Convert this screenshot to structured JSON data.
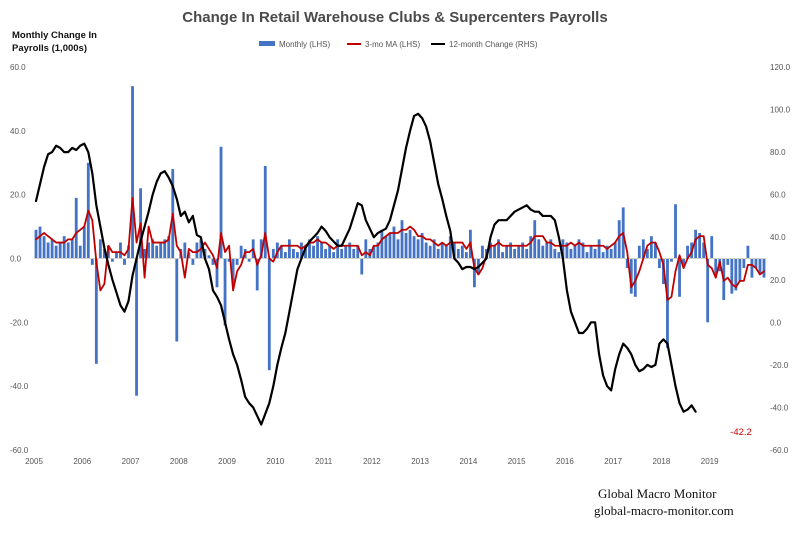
{
  "chart_data": {
    "type": "bar",
    "title": "Change In Retail Warehouse Clubs & Supercenters Payrolls",
    "ylabel": "Monthly Change In Payrolls (1,000s)",
    "ylabel_lines": [
      "Monthly Change In",
      "Payrolls (1,000s)"
    ],
    "x_ticks": [
      "2005",
      "2006",
      "2007",
      "2008",
      "2009",
      "2010",
      "2011",
      "2012",
      "2013",
      "2014",
      "2015",
      "2016",
      "2017",
      "2018",
      "2019"
    ],
    "x_start_year": 2005,
    "ylim_left": [
      -60,
      60
    ],
    "left_ticks": [
      "60.0",
      "40.0",
      "20.0",
      "0.0",
      "-20.0",
      "-40.0",
      "-60.0"
    ],
    "ylim_right": [
      -60,
      120
    ],
    "right_ticks": [
      "120.0",
      "100.0",
      "80.0",
      "60.0",
      "40.0",
      "20.0",
      "0.0",
      "-20.0",
      "-40.0",
      "-60.0"
    ],
    "legend": [
      {
        "label": "Monthly (LHS)",
        "color": "#4472c4",
        "kind": "bar"
      },
      {
        "label": "3-mo MA (LHS)",
        "color": "#c00000",
        "kind": "line"
      },
      {
        "label": "12-month Change (RHS)",
        "color": "#000000",
        "kind": "line"
      }
    ],
    "series": [
      {
        "name": "Monthly (LHS)",
        "axis": "left",
        "color": "#4472c4",
        "values": [
          9,
          10,
          7,
          5,
          6,
          4,
          5,
          7,
          5,
          6,
          19,
          4,
          10,
          30,
          -2,
          -33,
          6,
          3,
          4,
          -1,
          2,
          5,
          -2,
          4,
          54,
          -43,
          22,
          3,
          5,
          6,
          4,
          5,
          6,
          7,
          28,
          -26,
          3,
          5,
          2,
          -2,
          5,
          6,
          3,
          1,
          -2,
          -9,
          35,
          -21,
          -1,
          -8,
          -2,
          4,
          3,
          -1,
          6,
          -10,
          6,
          29,
          -35,
          3,
          5,
          4,
          2,
          6,
          3,
          2,
          5,
          4,
          6,
          4,
          7,
          5,
          3,
          4,
          2,
          6,
          3,
          4,
          5,
          3,
          4,
          -5,
          6,
          3,
          4,
          5,
          9,
          7,
          8,
          10,
          6,
          12,
          8,
          9,
          7,
          6,
          8,
          5,
          4,
          6,
          3,
          5,
          4,
          7,
          5,
          3,
          4,
          2,
          9,
          -9,
          -5,
          4,
          3,
          5,
          4,
          6,
          2,
          4,
          5,
          3,
          4,
          5,
          3,
          7,
          12,
          6,
          4,
          5,
          6,
          3,
          2,
          6,
          5,
          3,
          4,
          6,
          5,
          2,
          4,
          3,
          6,
          2,
          4,
          3,
          5,
          12,
          16,
          -3,
          -11,
          -12,
          4,
          6,
          3,
          7,
          5,
          -3,
          -8,
          -28,
          -1,
          17,
          -12,
          -2,
          4,
          5,
          9,
          8,
          5,
          -20,
          7,
          -5,
          -4,
          -13,
          -2,
          -11,
          -10,
          -7,
          -3,
          4,
          -6,
          -3,
          -5,
          -6
        ]
      },
      {
        "name": "3-mo MA (LHS)",
        "axis": "left",
        "color": "#c00000",
        "values": [
          6,
          7,
          8,
          7,
          6,
          5,
          5,
          5,
          6,
          6,
          8,
          9,
          10,
          15,
          12,
          -1,
          -10,
          -8,
          4,
          2,
          2,
          2,
          1,
          3,
          19,
          5,
          11,
          -6,
          10,
          5,
          5,
          5,
          5,
          6,
          14,
          4,
          2,
          -6,
          3,
          2,
          2,
          3,
          5,
          3,
          1,
          -3,
          8,
          2,
          4,
          -10,
          -4,
          -2,
          2,
          2,
          3,
          -2,
          1,
          8,
          0,
          -1,
          2,
          4,
          4,
          4,
          4,
          4,
          3,
          4,
          5,
          5,
          6,
          5,
          5,
          4,
          3,
          4,
          4,
          4,
          4,
          4,
          4,
          1,
          2,
          1,
          4,
          4,
          6,
          7,
          8,
          8,
          8,
          9,
          9,
          10,
          9,
          7,
          7,
          6,
          6,
          5,
          4,
          5,
          4,
          5,
          5,
          5,
          5,
          3,
          5,
          -3,
          -5,
          -3,
          1,
          4,
          4,
          5,
          4,
          4,
          4,
          4,
          4,
          4,
          4,
          5,
          7,
          7,
          7,
          5,
          5,
          4,
          4,
          4,
          4,
          5,
          4,
          5,
          4,
          4,
          4,
          4,
          4,
          4,
          3,
          4,
          5,
          7,
          8,
          2,
          -9,
          -7,
          -4,
          0,
          4,
          5,
          5,
          2,
          -2,
          -13,
          -12,
          -4,
          1,
          -3,
          0,
          2,
          6,
          7,
          7,
          -2,
          -3,
          -6,
          -1,
          -7,
          -6,
          -8,
          -9,
          -7,
          -7,
          -2,
          -2,
          -3,
          -5,
          -4
        ]
      },
      {
        "name": "12-month Change (RHS)",
        "axis": "right",
        "color": "#000000",
        "values": [
          57,
          65,
          73,
          79,
          80,
          83,
          82,
          80,
          80,
          82,
          81,
          83,
          84,
          80,
          70,
          55,
          45,
          35,
          27,
          20,
          14,
          8,
          5,
          10,
          22,
          30,
          38,
          45,
          52,
          60,
          66,
          70,
          71,
          68,
          64,
          58,
          50,
          52,
          47,
          50,
          41,
          40,
          30,
          25,
          15,
          12,
          8,
          0,
          -8,
          -15,
          -20,
          -27,
          -35,
          -38,
          -40,
          -44,
          -48,
          -43,
          -38,
          -30,
          -20,
          -12,
          -5,
          5,
          15,
          25,
          30,
          35,
          38,
          40,
          42,
          45,
          43,
          40,
          38,
          36,
          36,
          40,
          44,
          50,
          56,
          55,
          48,
          44,
          40,
          42,
          43,
          44,
          48,
          55,
          62,
          72,
          82,
          90,
          97,
          98,
          96,
          92,
          85,
          75,
          65,
          58,
          50,
          43,
          30,
          28,
          25,
          26,
          26,
          25,
          26,
          28,
          30,
          40,
          46,
          48,
          48,
          48,
          50,
          52,
          53,
          54,
          55,
          53,
          52,
          52,
          50,
          50,
          50,
          48,
          40,
          30,
          15,
          5,
          0,
          -5,
          -5,
          -3,
          0,
          0,
          -15,
          -25,
          -30,
          -32,
          -22,
          -15,
          -10,
          -12,
          -15,
          -20,
          -23,
          -22,
          -20,
          -21,
          -20,
          -10,
          -8,
          -10,
          -20,
          -30,
          -38,
          -42,
          -41,
          -39,
          -42
        ]
      }
    ],
    "callout": "-42.2",
    "callout_color": "#d00000",
    "grid": false
  },
  "credit": {
    "line1": "Global Macro Monitor",
    "line2": "global-macro-monitor.com"
  }
}
